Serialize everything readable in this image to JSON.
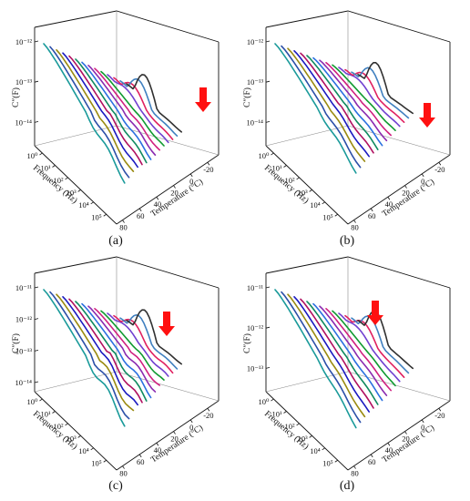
{
  "colors": [
    "#1a9a9a",
    "#2b4fa8",
    "#9a8a10",
    "#1a1ac0",
    "#b01060",
    "#108a60",
    "#2a70e0",
    "#8a2ab0",
    "#d02080",
    "#109a30",
    "#7040d0",
    "#e02060",
    "#4080c0",
    "#303030"
  ],
  "arrow_color": "#ff1010",
  "chart_data": [
    {
      "id": "a",
      "type": "line",
      "caption": "(a)",
      "ylabel": "C″(F)",
      "xlabel": "Frequency (Hz)",
      "zlabel": "Temperature (°C)",
      "y_ticks": [
        "10⁻¹²",
        "10⁻¹³",
        "10⁻¹⁴"
      ],
      "x_ticks": [
        "10⁰",
        "10¹",
        "10²",
        "10³",
        "10⁴",
        "10⁵"
      ],
      "z_ticks": [
        "80",
        "60",
        "40",
        "20",
        "0",
        "-20"
      ],
      "curves": 14,
      "temperature_range": [
        -20,
        80
      ],
      "frequency_range_hz": [
        1,
        100000
      ],
      "log_y": true,
      "arrow": "points down at the low-temperature curves (about -20 °C)"
    },
    {
      "id": "b",
      "type": "line",
      "caption": "(b)",
      "ylabel": "C″(F)",
      "xlabel": "Frequency (Hz)",
      "zlabel": "Temperature (°C)",
      "y_ticks": [
        "10⁻¹²",
        "10⁻¹³",
        "10⁻¹⁴"
      ],
      "x_ticks": [
        "10⁰",
        "10¹",
        "10²",
        "10³",
        "10⁴",
        "10⁵"
      ],
      "z_ticks": [
        "80",
        "60",
        "40",
        "20",
        "0",
        "-20"
      ],
      "curves": 14,
      "temperature_range": [
        -20,
        80
      ],
      "frequency_range_hz": [
        1,
        100000
      ],
      "log_y": true,
      "arrow": "points down at the low-temperature curves (about -20 °C)"
    },
    {
      "id": "c",
      "type": "line",
      "caption": "(c)",
      "ylabel": "C″(F)",
      "xlabel": "Frequency (Hz)",
      "zlabel": "Temperature (°C)",
      "y_ticks": [
        "10⁻¹¹",
        "10⁻¹²",
        "10⁻¹³",
        "10⁻¹⁴"
      ],
      "x_ticks": [
        "10⁰",
        "10¹",
        "10²",
        "10³",
        "10⁴",
        "10⁵"
      ],
      "z_ticks": [
        "80",
        "60",
        "40",
        "20",
        "0",
        "-20"
      ],
      "curves": 14,
      "temperature_range": [
        -20,
        80
      ],
      "frequency_range_hz": [
        1,
        100000
      ],
      "log_y": true,
      "arrow": "points down at the low-temperature curves (about -20 °C)"
    },
    {
      "id": "d",
      "type": "line",
      "caption": "(d)",
      "ylabel": "C″(F)",
      "xlabel": "Frequency (Hz)",
      "zlabel": "Temperature (°C)",
      "y_ticks": [
        "10⁻¹¹",
        "10⁻¹²",
        "10⁻¹³"
      ],
      "x_ticks": [
        "10⁰",
        "10¹",
        "10²",
        "10³",
        "10⁴",
        "10⁵"
      ],
      "z_ticks": [
        "80",
        "60",
        "40",
        "20",
        "0",
        "-20"
      ],
      "curves": 14,
      "temperature_range": [
        -20,
        80
      ],
      "frequency_range_hz": [
        1,
        100000
      ],
      "log_y": true,
      "arrow": "points down at the low-temperature curves (about -20 °C)"
    }
  ]
}
